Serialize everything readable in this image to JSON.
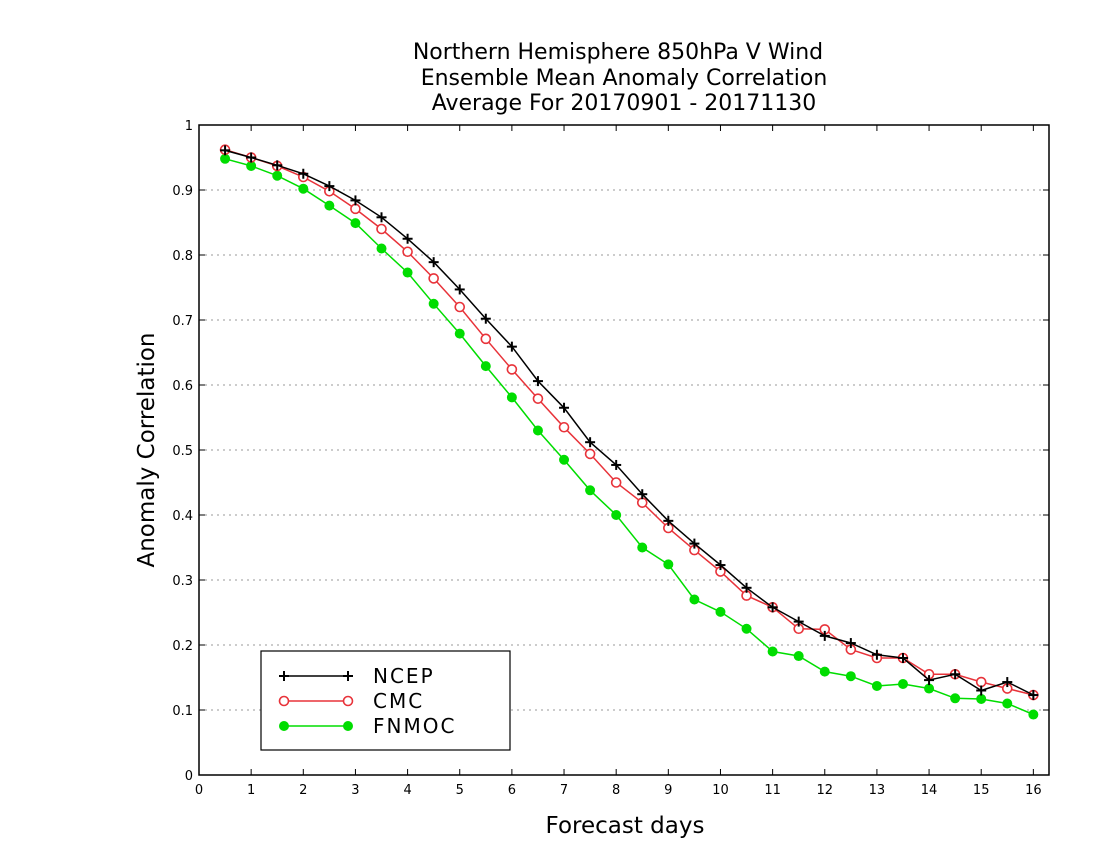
{
  "chart_data": {
    "type": "line",
    "title": [
      "Northern Hemisphere 850hPa V Wind",
      "Ensemble Mean Anomaly Correlation",
      "Average For 20170901 - 20171130"
    ],
    "xlabel": "Forecast days",
    "ylabel": "Anomaly Correlation",
    "xlim": [
      0,
      16.3
    ],
    "ylim": [
      0,
      1
    ],
    "x_ticks": [
      0,
      1,
      2,
      3,
      4,
      5,
      6,
      7,
      8,
      9,
      10,
      11,
      12,
      13,
      14,
      15,
      16
    ],
    "y_ticks": [
      0,
      0.1,
      0.2,
      0.3,
      0.4,
      0.5,
      0.6,
      0.7,
      0.8,
      0.9,
      1
    ],
    "y_tick_labels": [
      "0",
      "0.1",
      "0.2",
      "0.3",
      "0.4",
      "0.5",
      "0.6",
      "0.7",
      "0.8",
      "0.9",
      "1"
    ],
    "grid": "horizontal dotted",
    "legend_position": "bottom-left",
    "x": [
      0.5,
      1,
      1.5,
      2,
      2.5,
      3,
      3.5,
      4,
      4.5,
      5,
      5.5,
      6,
      6.5,
      7,
      7.5,
      8,
      8.5,
      9,
      9.5,
      10,
      10.5,
      11,
      11.5,
      12,
      12.5,
      13,
      13.5,
      14,
      14.5,
      15,
      15.5,
      16
    ],
    "series": [
      {
        "name": "NCEP",
        "color": "#000000",
        "marker": "plus",
        "values": [
          0.961,
          0.95,
          0.938,
          0.925,
          0.906,
          0.884,
          0.858,
          0.825,
          0.789,
          0.747,
          0.702,
          0.659,
          0.606,
          0.565,
          0.512,
          0.477,
          0.432,
          0.391,
          0.356,
          0.323,
          0.288,
          0.258,
          0.236,
          0.214,
          0.203,
          0.185,
          0.18,
          0.146,
          0.155,
          0.13,
          0.143,
          0.123
        ]
      },
      {
        "name": "CMC",
        "color": "#e8333a",
        "marker": "open-circle",
        "values": [
          0.962,
          0.95,
          0.937,
          0.92,
          0.898,
          0.871,
          0.84,
          0.805,
          0.764,
          0.72,
          0.671,
          0.624,
          0.579,
          0.535,
          0.494,
          0.45,
          0.419,
          0.38,
          0.346,
          0.313,
          0.276,
          0.258,
          0.225,
          0.224,
          0.193,
          0.18,
          0.18,
          0.155,
          0.155,
          0.143,
          0.133,
          0.123
        ]
      },
      {
        "name": "FNMOC",
        "color": "#00dd00",
        "marker": "filled-circle",
        "values": [
          0.948,
          0.937,
          0.922,
          0.902,
          0.876,
          0.849,
          0.81,
          0.773,
          0.725,
          0.679,
          0.629,
          0.581,
          0.53,
          0.485,
          0.438,
          0.4,
          0.35,
          0.324,
          0.27,
          0.251,
          0.225,
          0.19,
          0.183,
          0.159,
          0.152,
          0.137,
          0.14,
          0.133,
          0.118,
          0.117,
          0.11,
          0.093
        ]
      }
    ]
  }
}
